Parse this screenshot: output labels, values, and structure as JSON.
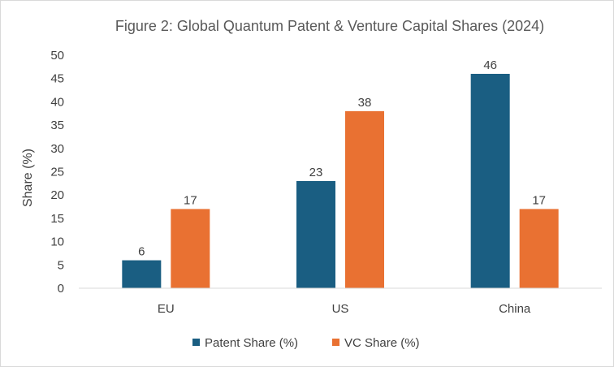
{
  "chart_data": {
    "type": "bar",
    "title": "Figure 2: Global Quantum Patent & Venture Capital Shares (2024)",
    "xlabel": "",
    "ylabel": "Share (%)",
    "ylim": [
      0,
      50
    ],
    "yticks": [
      0,
      5,
      10,
      15,
      20,
      25,
      30,
      35,
      40,
      45,
      50
    ],
    "grid": false,
    "legend_position": "bottom",
    "categories": [
      "EU",
      "US",
      "China"
    ],
    "series": [
      {
        "name": "Patent Share (%)",
        "values": [
          6,
          23,
          46
        ],
        "color": "#1a5e82"
      },
      {
        "name": "VC Share (%)",
        "values": [
          17,
          38,
          17
        ],
        "color": "#e97132"
      }
    ],
    "data_labels": true
  }
}
